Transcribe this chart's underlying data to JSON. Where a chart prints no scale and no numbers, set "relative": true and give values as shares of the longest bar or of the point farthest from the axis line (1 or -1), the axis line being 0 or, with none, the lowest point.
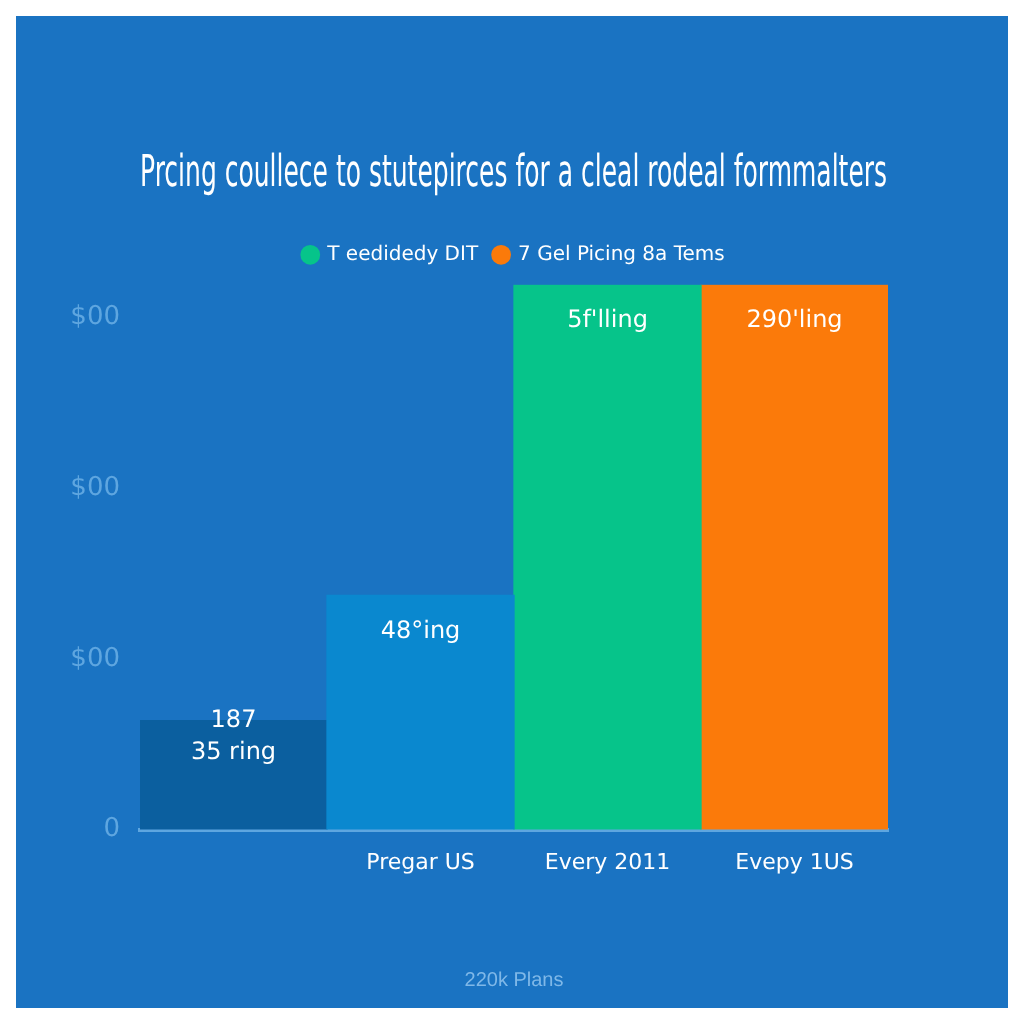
{
  "chart_data": {
    "type": "bar",
    "title": "Prcing coullece to stutepirces for a cleal rodeal formmalters",
    "xlabel": "220k Plans",
    "categories": [
      null,
      "Pregar US",
      "Every 2011",
      "Evepy 1US"
    ],
    "stacked": true,
    "legend": "top",
    "series": [
      {
        "colors": [
          "#0b5f9f",
          "#0a88cf",
          null,
          null
        ],
        "values": [
          0.2,
          0.43,
          null,
          null
        ]
      },
      {
        "name": "T eedidedy DIT",
        "color": "#06c48a",
        "values": [
          null,
          null,
          1,
          null
        ]
      },
      {
        "name": "7 Gel Picing 8a Tems",
        "color": "#fb7a0a",
        "values": [
          null,
          null,
          null,
          1
        ]
      }
    ],
    "relative": true,
    "annotations": [
      "$00",
      "$00",
      "$00",
      "0",
      "187\n35 ring",
      "48°ing",
      "5f'lling",
      "290'ling"
    ],
    "grid": false
  }
}
